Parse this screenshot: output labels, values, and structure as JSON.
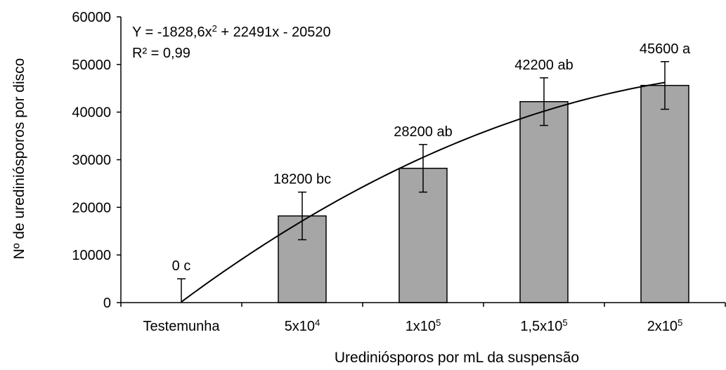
{
  "chart_data": {
    "type": "bar",
    "title": "",
    "xlabel": "Urediniósporos por mL da suspensão",
    "ylabel": "Nº de urediniósporos por disco",
    "ylim": [
      0,
      60000
    ],
    "yticks": [
      0,
      10000,
      20000,
      30000,
      40000,
      50000,
      60000
    ],
    "categories": [
      {
        "base": "Testemunha",
        "exp": ""
      },
      {
        "base": "5x10",
        "exp": "4"
      },
      {
        "base": "1x10",
        "exp": "5"
      },
      {
        "base": "1,5x10",
        "exp": "5"
      },
      {
        "base": "2x10",
        "exp": "5"
      }
    ],
    "values": [
      0,
      18200,
      28200,
      42200,
      45600
    ],
    "error": [
      5000,
      5000,
      5000,
      5000,
      5000
    ],
    "data_labels": [
      "0 c",
      "18200 bc",
      "28200 ab",
      "42200 ab",
      "45600 a"
    ],
    "bar_color": "#a6a6a6",
    "grid": false,
    "trendline": {
      "type": "polynomial",
      "coefficients": {
        "a": -1828.6,
        "b": 22491,
        "c": -20520
      },
      "x_domain": [
        1,
        5
      ],
      "equation_prefix": "Y = -1828,6x",
      "equation_exp": "2",
      "equation_suffix": " + 22491x - 20520",
      "r2": "R² = 0,99"
    }
  }
}
